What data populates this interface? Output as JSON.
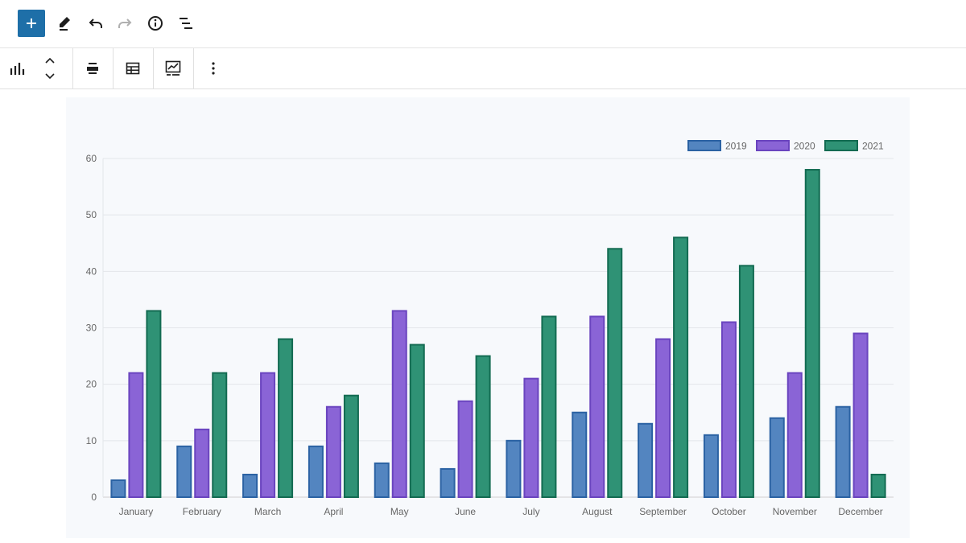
{
  "toolbar": {
    "icons": [
      "plus-icon",
      "pencil-icon",
      "undo-icon",
      "redo-icon",
      "info-icon",
      "list-view-icon"
    ]
  },
  "block_toolbar": {
    "icons": [
      "bar-chart-icon",
      "move-up-down-icon",
      "align-icon",
      "table-icon",
      "chart-edit-icon",
      "more-options-icon"
    ]
  },
  "colors": {
    "accent": "#1e6fa8",
    "series_2019": "#4f81bd",
    "series_2020": "#8064d2",
    "series_2021": "#2e8b70"
  },
  "chart_data": {
    "type": "bar",
    "categories": [
      "January",
      "February",
      "March",
      "April",
      "May",
      "June",
      "July",
      "August",
      "September",
      "October",
      "November",
      "December"
    ],
    "series": [
      {
        "name": "2019",
        "values": [
          3,
          9,
          4,
          9,
          6,
          5,
          10,
          15,
          13,
          11,
          14,
          16
        ],
        "fill": "#5385c0",
        "stroke": "#2b62a3"
      },
      {
        "name": "2020",
        "values": [
          22,
          12,
          22,
          16,
          33,
          17,
          21,
          32,
          28,
          31,
          22,
          29
        ],
        "fill": "#8a64d6",
        "stroke": "#6a44bf"
      },
      {
        "name": "2021",
        "values": [
          33,
          22,
          28,
          18,
          27,
          25,
          32,
          44,
          46,
          41,
          58,
          4
        ],
        "fill": "#2f9275",
        "stroke": "#136b52"
      }
    ],
    "yticks": [
      "0",
      "10",
      "20",
      "30",
      "40",
      "50",
      "60"
    ],
    "ylim": [
      0,
      60
    ],
    "grid": true,
    "legend": "top-right"
  }
}
